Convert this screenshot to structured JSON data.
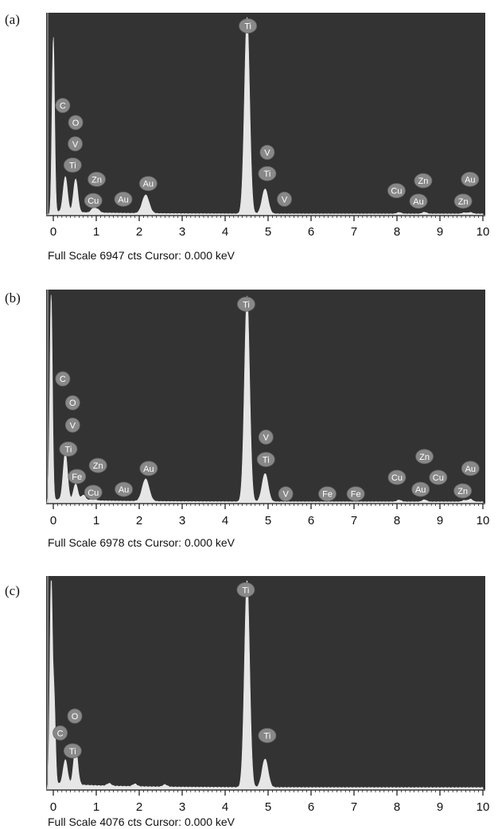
{
  "colors": {
    "plot_background": "#333333",
    "spectrum_fill": "#e6e6e6",
    "marker_fill": "#888888",
    "marker_text": "#ffffff",
    "axis": "#111111"
  },
  "chart_data": [
    {
      "panel": "(a)",
      "type": "area",
      "xlabel": "",
      "ylabel": "",
      "xlim": [
        -0.2,
        10
      ],
      "ylim": [
        0,
        6947
      ],
      "xticks": [
        0,
        1,
        2,
        3,
        4,
        5,
        6,
        7,
        8,
        9,
        10
      ],
      "full_scale": "6947",
      "footer": "Full Scale 6947 cts Cursor: 0.000 keV",
      "peaks": [
        {
          "x": 0.0,
          "y": 6200,
          "w": 0.03
        },
        {
          "x": 0.28,
          "y": 1250,
          "w": 0.05
        },
        {
          "x": 0.52,
          "y": 1180,
          "w": 0.05
        },
        {
          "x": 0.93,
          "y": 150,
          "w": 0.05
        },
        {
          "x": 1.03,
          "y": 120,
          "w": 0.05
        },
        {
          "x": 2.15,
          "y": 650,
          "w": 0.08
        },
        {
          "x": 4.51,
          "y": 6947,
          "w": 0.06
        },
        {
          "x": 4.93,
          "y": 880,
          "w": 0.07
        },
        {
          "x": 8.05,
          "y": 50,
          "w": 0.05
        },
        {
          "x": 8.64,
          "y": 60,
          "w": 0.05
        },
        {
          "x": 9.57,
          "y": 40,
          "w": 0.05
        },
        {
          "x": 9.71,
          "y": 50,
          "w": 0.05
        }
      ],
      "elements": [
        {
          "label": "C",
          "x": 0.22,
          "y": 3850
        },
        {
          "label": "O",
          "x": 0.52,
          "y": 3250
        },
        {
          "label": "V",
          "x": 0.51,
          "y": 2500
        },
        {
          "label": "Ti",
          "x": 0.45,
          "y": 1750
        },
        {
          "label": "Zn",
          "x": 1.01,
          "y": 1250
        },
        {
          "label": "Cu",
          "x": 0.93,
          "y": 500
        },
        {
          "label": "Au",
          "x": 1.63,
          "y": 550
        },
        {
          "label": "Au",
          "x": 2.21,
          "y": 1100
        },
        {
          "label": "Ti",
          "x": 4.53,
          "y": 6650
        },
        {
          "label": "V",
          "x": 4.98,
          "y": 2200
        },
        {
          "label": "Ti",
          "x": 4.98,
          "y": 1450
        },
        {
          "label": "V",
          "x": 5.38,
          "y": 550
        },
        {
          "label": "Cu",
          "x": 7.99,
          "y": 850
        },
        {
          "label": "Zn",
          "x": 8.61,
          "y": 1200
        },
        {
          "label": "Au",
          "x": 8.5,
          "y": 480
        },
        {
          "label": "Au",
          "x": 9.7,
          "y": 1250
        },
        {
          "label": "Zn",
          "x": 9.54,
          "y": 480
        }
      ]
    },
    {
      "panel": "(b)",
      "type": "area",
      "xlabel": "",
      "ylabel": "",
      "xlim": [
        -0.2,
        10
      ],
      "ylim": [
        0,
        6978
      ],
      "xticks": [
        0,
        1,
        2,
        3,
        4,
        5,
        6,
        7,
        8,
        9,
        10
      ],
      "full_scale": "6978",
      "footer": "Full Scale 6978 cts Cursor: 0.000 keV",
      "peaks": [
        {
          "x": -0.05,
          "y": 6978,
          "w": 0.03
        },
        {
          "x": 0.28,
          "y": 1600,
          "w": 0.05
        },
        {
          "x": 0.52,
          "y": 550,
          "w": 0.05
        },
        {
          "x": 0.7,
          "y": 180,
          "w": 0.05
        },
        {
          "x": 0.93,
          "y": 100,
          "w": 0.05
        },
        {
          "x": 2.15,
          "y": 750,
          "w": 0.08
        },
        {
          "x": 4.51,
          "y": 6900,
          "w": 0.06
        },
        {
          "x": 4.93,
          "y": 950,
          "w": 0.07
        },
        {
          "x": 8.05,
          "y": 60,
          "w": 0.05
        },
        {
          "x": 8.64,
          "y": 70,
          "w": 0.05
        },
        {
          "x": 9.57,
          "y": 50,
          "w": 0.05
        },
        {
          "x": 9.71,
          "y": 90,
          "w": 0.05
        }
      ],
      "elements": [
        {
          "label": "C",
          "x": 0.22,
          "y": 4150
        },
        {
          "label": "O",
          "x": 0.45,
          "y": 3350
        },
        {
          "label": "V",
          "x": 0.45,
          "y": 2600
        },
        {
          "label": "Ti",
          "x": 0.35,
          "y": 1800
        },
        {
          "label": "Fe",
          "x": 0.55,
          "y": 880
        },
        {
          "label": "Zn",
          "x": 1.04,
          "y": 1250
        },
        {
          "label": "Cu",
          "x": 0.93,
          "y": 350
        },
        {
          "label": "Au",
          "x": 1.64,
          "y": 450
        },
        {
          "label": "Au",
          "x": 2.22,
          "y": 1150
        },
        {
          "label": "Ti",
          "x": 4.49,
          "y": 6650
        },
        {
          "label": "V",
          "x": 4.95,
          "y": 2200
        },
        {
          "label": "Ti",
          "x": 4.95,
          "y": 1450
        },
        {
          "label": "V",
          "x": 5.41,
          "y": 300
        },
        {
          "label": "Fe",
          "x": 6.38,
          "y": 300
        },
        {
          "label": "Fe",
          "x": 7.04,
          "y": 300
        },
        {
          "label": "Cu",
          "x": 8.0,
          "y": 850
        },
        {
          "label": "Zn",
          "x": 8.64,
          "y": 1550
        },
        {
          "label": "Cu",
          "x": 8.96,
          "y": 850
        },
        {
          "label": "Au",
          "x": 8.55,
          "y": 450
        },
        {
          "label": "Au",
          "x": 9.71,
          "y": 1150
        },
        {
          "label": "Zn",
          "x": 9.53,
          "y": 400
        }
      ]
    },
    {
      "panel": "(c)",
      "type": "area",
      "xlabel": "",
      "ylabel": "",
      "xlim": [
        -0.2,
        10
      ],
      "ylim": [
        0,
        4076
      ],
      "xticks": [
        0,
        1,
        2,
        3,
        4,
        5,
        6,
        7,
        8,
        9,
        10
      ],
      "full_scale": "4076",
      "footer": "Full Scale 4076 cts Cursor: 0.000 keV",
      "peaks": [
        {
          "x": -0.05,
          "y": 4076,
          "w": 0.03
        },
        {
          "x": 0.02,
          "y": 1600,
          "w": 0.03
        },
        {
          "x": 0.28,
          "y": 480,
          "w": 0.05
        },
        {
          "x": 0.52,
          "y": 730,
          "w": 0.05
        },
        {
          "x": 1.3,
          "y": 50,
          "w": 0.05
        },
        {
          "x": 1.9,
          "y": 50,
          "w": 0.05
        },
        {
          "x": 2.6,
          "y": 45,
          "w": 0.05
        },
        {
          "x": 4.51,
          "y": 4076,
          "w": 0.06
        },
        {
          "x": 4.93,
          "y": 560,
          "w": 0.07
        }
      ],
      "elements": [
        {
          "label": "O",
          "x": 0.5,
          "y": 1430
        },
        {
          "label": "C",
          "x": 0.16,
          "y": 1100
        },
        {
          "label": "Ti",
          "x": 0.45,
          "y": 750
        },
        {
          "label": "Ti",
          "x": 4.48,
          "y": 3900
        },
        {
          "label": "Ti",
          "x": 4.98,
          "y": 1050
        }
      ]
    }
  ]
}
